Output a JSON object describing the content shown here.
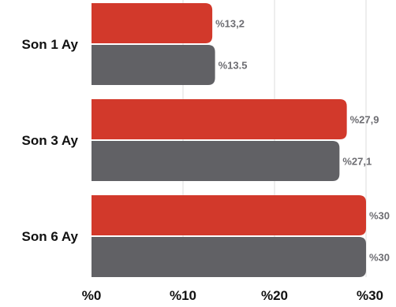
{
  "chart_data": {
    "type": "bar",
    "orientation": "horizontal",
    "categories": [
      "Son 1 Ay",
      "Son 3 Ay",
      "Son 6 Ay"
    ],
    "series": [
      {
        "values": [
          13.2,
          27.9,
          30
        ],
        "value_labels": [
          "%13,2",
          "%27,9",
          "%30"
        ],
        "color": "#d2392b"
      },
      {
        "values": [
          13.5,
          27.1,
          30
        ],
        "value_labels": [
          "%13.5",
          "%27,1",
          "%30"
        ],
        "color": "#616165"
      }
    ],
    "x_ticks": [
      {
        "value": 0,
        "label": "%0"
      },
      {
        "value": 10,
        "label": "%10"
      },
      {
        "value": 20,
        "label": "%20"
      },
      {
        "value": 30,
        "label": "%30"
      }
    ],
    "xlim": [
      0,
      30
    ],
    "grid": true,
    "legend": "none"
  }
}
